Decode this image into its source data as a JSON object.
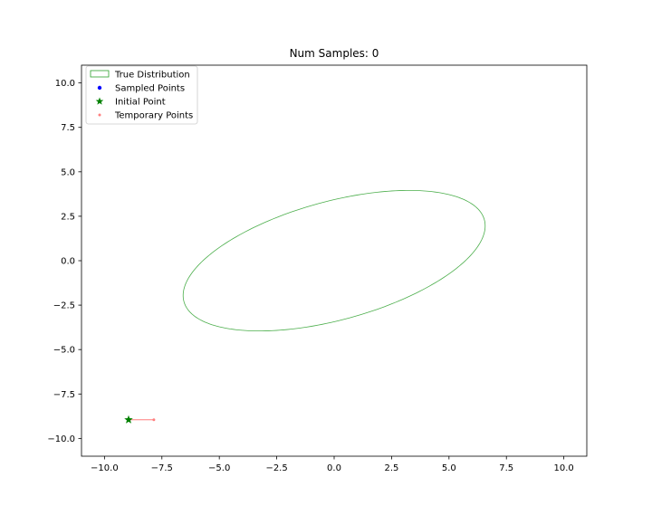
{
  "chart_data": {
    "type": "scatter",
    "title": "Num Samples: 0",
    "xlabel": "",
    "ylabel": "",
    "xlim": [
      -11,
      11
    ],
    "ylim": [
      -11,
      11
    ],
    "xticks": [
      -10.0,
      -7.5,
      -5.0,
      -2.5,
      0.0,
      2.5,
      5.0,
      7.5,
      10.0
    ],
    "xtick_labels": [
      "−10.0",
      "−7.5",
      "−5.0",
      "−2.5",
      "0.0",
      "2.5",
      "5.0",
      "7.5",
      "10.0"
    ],
    "yticks": [
      10.0,
      7.5,
      5.0,
      2.5,
      0.0,
      -2.5,
      -5.0,
      -7.5,
      -10.0
    ],
    "ytick_labels": [
      "10.0",
      "7.5",
      "5.0",
      "2.5",
      "0.0",
      "−2.5",
      "−5.0",
      "−7.5",
      "−10.0"
    ],
    "grid": false,
    "legend_position": "upper left",
    "legend": [
      {
        "label": "True Distribution",
        "marker": "patch",
        "color": "#2ca02c"
      },
      {
        "label": "Sampled Points",
        "marker": "circle",
        "color": "#0000ff"
      },
      {
        "label": "Initial Point",
        "marker": "star",
        "color": "#008000"
      },
      {
        "label": "Temporary Points",
        "marker": "circle",
        "color": "#ff7f7f"
      }
    ],
    "true_distribution": {
      "shape": "ellipse",
      "center": [
        0.0,
        0.0
      ],
      "semi_major": 6.95,
      "semi_minor": 3.25,
      "angle_deg": 21.5,
      "color": "#2ca02c"
    },
    "sampled_points": [],
    "initial_point": {
      "x": -8.95,
      "y": -8.95,
      "color": "#008000"
    },
    "temporary_points": [
      {
        "x": -7.85,
        "y": -8.95
      }
    ],
    "temporary_line": [
      [
        -8.95,
        -8.95
      ],
      [
        -7.85,
        -8.95
      ]
    ],
    "temporary_color": "#ff7f7f"
  }
}
